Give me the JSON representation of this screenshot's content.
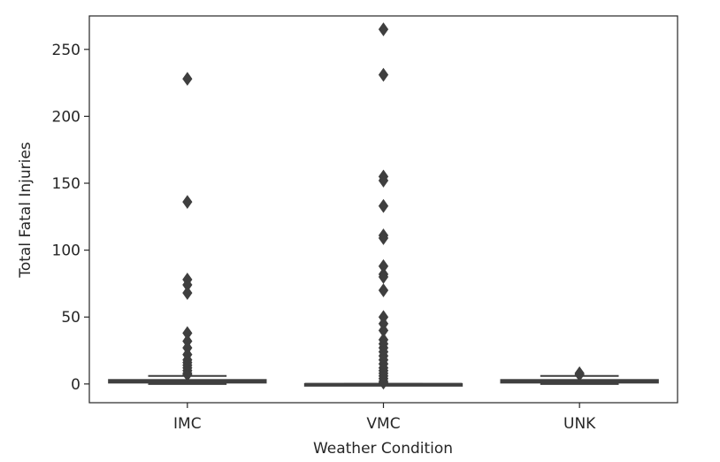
{
  "chart_data": {
    "type": "box",
    "title": "",
    "xlabel": "Weather Condition",
    "ylabel": "Total Fatal Injuries",
    "categories": [
      "IMC",
      "VMC",
      "UNK"
    ],
    "ylim": [
      -14,
      275
    ],
    "yticks": [
      0,
      50,
      100,
      150,
      200,
      250
    ],
    "grid": false,
    "legend": "none",
    "box_color": "#4c72b0",
    "line_color": "#3f3f3f",
    "boxes": [
      {
        "category": "IMC",
        "q1": 1,
        "median": 2,
        "q3": 3,
        "whisker_low": 0,
        "whisker_high": 6,
        "outliers": [
          228,
          136,
          78,
          74,
          68,
          38,
          32,
          27,
          22,
          18,
          16,
          14,
          12,
          10,
          8,
          7
        ]
      },
      {
        "category": "VMC",
        "q1": 0,
        "median": 0,
        "q3": 0,
        "whisker_low": 0,
        "whisker_high": 0,
        "outliers": [
          265,
          231,
          155,
          152,
          133,
          111,
          109,
          88,
          82,
          80,
          70,
          50,
          45,
          40,
          33,
          30,
          27,
          24,
          21,
          18,
          15,
          12,
          10,
          8,
          6,
          4,
          2,
          1
        ]
      },
      {
        "category": "UNK",
        "q1": 1,
        "median": 2,
        "q3": 3,
        "whisker_low": 0,
        "whisker_high": 6,
        "outliers": [
          8,
          7
        ]
      }
    ]
  }
}
